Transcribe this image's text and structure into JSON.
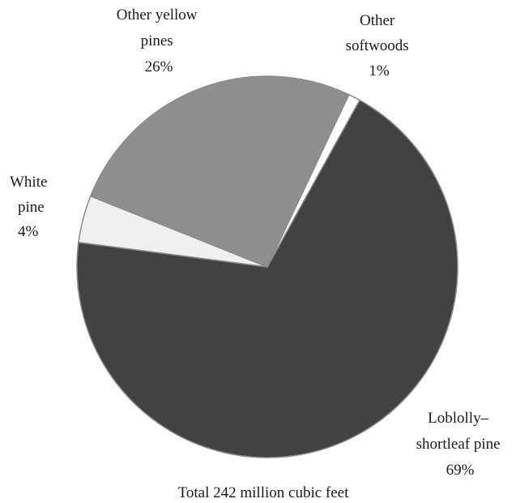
{
  "chart_data": {
    "type": "pie",
    "slices": [
      {
        "key": "loblolly",
        "label_lines": [
          "Loblolly–",
          "shortleaf pine"
        ],
        "percent_label": "69%",
        "value": 69,
        "color": "#424242"
      },
      {
        "key": "white",
        "label_lines": [
          "White",
          "pine"
        ],
        "percent_label": "4%",
        "value": 4,
        "color": "#efefef"
      },
      {
        "key": "yellow",
        "label_lines": [
          "Other yellow",
          "pines"
        ],
        "percent_label": "26%",
        "value": 26,
        "color": "#8f8f8f"
      },
      {
        "key": "softwoods",
        "label_lines": [
          "Other",
          "softwoods"
        ],
        "percent_label": "1%",
        "value": 1,
        "color": "#ffffff"
      }
    ],
    "caption": "Total 242 million cubic feet"
  }
}
